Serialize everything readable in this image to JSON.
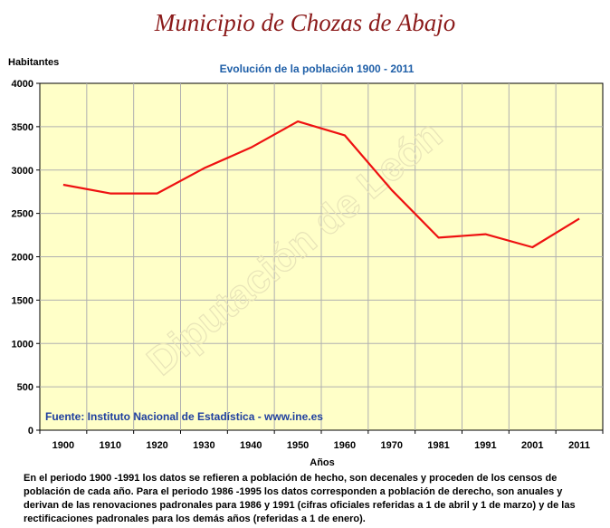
{
  "title": "Municipio de Chozas de Abajo",
  "footnote": "En el periodo 1900 -1991 los datos se refieren a población de hecho, son decenales y proceden de los censos de población de cada año. Para el periodo 1986 -1995 los datos corresponden a población de derecho, son anuales y derivan de las renovaciones padronales para 1986 y 1991 (cifras oficiales referidas a 1 de abril y 1 de marzo) y de las rectificaciones padronales para los demás años (referidas a 1 de enero).",
  "chart_data": {
    "type": "line",
    "title": "Evolución de la población 1900 - 2011",
    "xlabel": "Años",
    "ylabel": "Habitantes",
    "categories": [
      "1900",
      "1910",
      "1920",
      "1930",
      "1940",
      "1950",
      "1960",
      "1970",
      "1981",
      "1991",
      "2001",
      "2011"
    ],
    "series": [
      {
        "values": [
          2830,
          2730,
          2730,
          3020,
          3260,
          3560,
          3400,
          2770,
          2220,
          2260,
          2110,
          2440
        ]
      }
    ],
    "ylim": [
      0,
      4000
    ],
    "yticks": [
      0,
      500,
      1000,
      1500,
      2000,
      2500,
      3000,
      3500,
      4000
    ],
    "grid": true,
    "source": "Fuente: Instituto Nacional de Estadística - www.ine.es",
    "watermark": "Diputación de León",
    "colors": {
      "line": "#ee1111",
      "plot_bg": "#ffffc8",
      "title": "#8b1a1a",
      "subtitle": "#1f5fa8",
      "source": "#1f3f9f"
    }
  }
}
